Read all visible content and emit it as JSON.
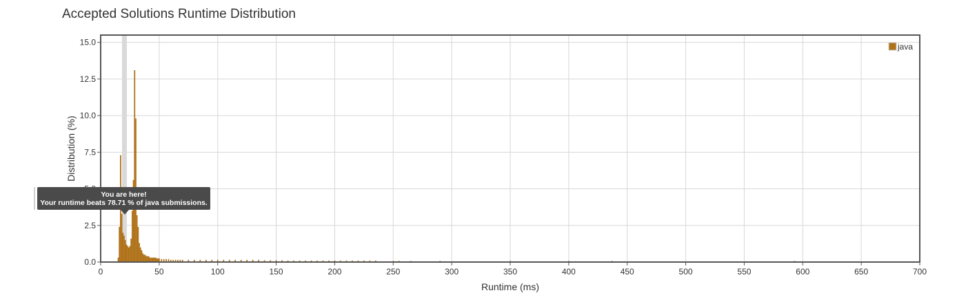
{
  "page": {
    "title": "Accepted Solutions Runtime Distribution"
  },
  "tooltip": {
    "line1": "You are here!",
    "line2": "Your runtime beats 78.71 % of java submissions."
  },
  "colors": {
    "bar": "#b07219",
    "highlight_band": "#d9d9d9",
    "grid": "#d7d7d7",
    "frame": "#555555"
  },
  "chart_data": {
    "type": "bar",
    "title": "Accepted Solutions Runtime Distribution",
    "xlabel": "Runtime (ms)",
    "ylabel": "Distribution (%)",
    "xlim": [
      0,
      700
    ],
    "ylim": [
      0,
      15.5
    ],
    "xticks": [
      0,
      50,
      100,
      150,
      200,
      250,
      300,
      350,
      400,
      450,
      500,
      550,
      600,
      650,
      700
    ],
    "yticks": [
      0.0,
      2.5,
      5.0,
      7.5,
      10.0,
      12.5,
      15.0
    ],
    "ytick_labels": [
      "0.0",
      "2.5",
      "5.0",
      "7.5",
      "10.0",
      "12.5",
      "15.0"
    ],
    "grid": true,
    "legend_position": "top-right",
    "highlight_runtime": 20,
    "series": [
      {
        "name": "java",
        "x": [
          15,
          16,
          17,
          18,
          19,
          20,
          21,
          22,
          23,
          24,
          25,
          26,
          27,
          28,
          29,
          30,
          31,
          32,
          33,
          34,
          35,
          36,
          37,
          38,
          39,
          40,
          41,
          42,
          43,
          44,
          45,
          46,
          47,
          48,
          49,
          50,
          52,
          54,
          56,
          58,
          60,
          62,
          64,
          66,
          68,
          70,
          75,
          80,
          85,
          90,
          95,
          100,
          105,
          110,
          115,
          120,
          125,
          130,
          135,
          140,
          145,
          150,
          155,
          160,
          165,
          170,
          175,
          180,
          185,
          190,
          195,
          200,
          205,
          210,
          215,
          220,
          225,
          230,
          235,
          250,
          255,
          265,
          290,
          350,
          400,
          437,
          593,
          700
        ],
        "values": [
          0.3,
          2.4,
          7.3,
          3.3,
          2.0,
          1.8,
          1.5,
          1.2,
          1.1,
          1.0,
          1.1,
          1.6,
          3.5,
          5.6,
          13.1,
          9.8,
          3.2,
          2.4,
          1.3,
          1.0,
          0.8,
          0.6,
          0.5,
          0.5,
          0.4,
          0.4,
          0.4,
          0.3,
          0.3,
          0.3,
          0.3,
          0.3,
          0.3,
          0.25,
          0.25,
          0.25,
          0.2,
          0.2,
          0.2,
          0.2,
          0.15,
          0.15,
          0.15,
          0.15,
          0.15,
          0.15,
          0.15,
          0.15,
          0.15,
          0.15,
          0.15,
          0.15,
          0.15,
          0.15,
          0.15,
          0.15,
          0.15,
          0.15,
          0.15,
          0.12,
          0.12,
          0.12,
          0.12,
          0.1,
          0.1,
          0.1,
          0.1,
          0.1,
          0.1,
          0.1,
          0.1,
          0.1,
          0.1,
          0.1,
          0.1,
          0.1,
          0.1,
          0.1,
          0.1,
          0.08,
          0.08,
          0.08,
          0.08,
          0.08,
          0.08,
          0.08,
          0.08,
          0.08
        ]
      }
    ]
  }
}
